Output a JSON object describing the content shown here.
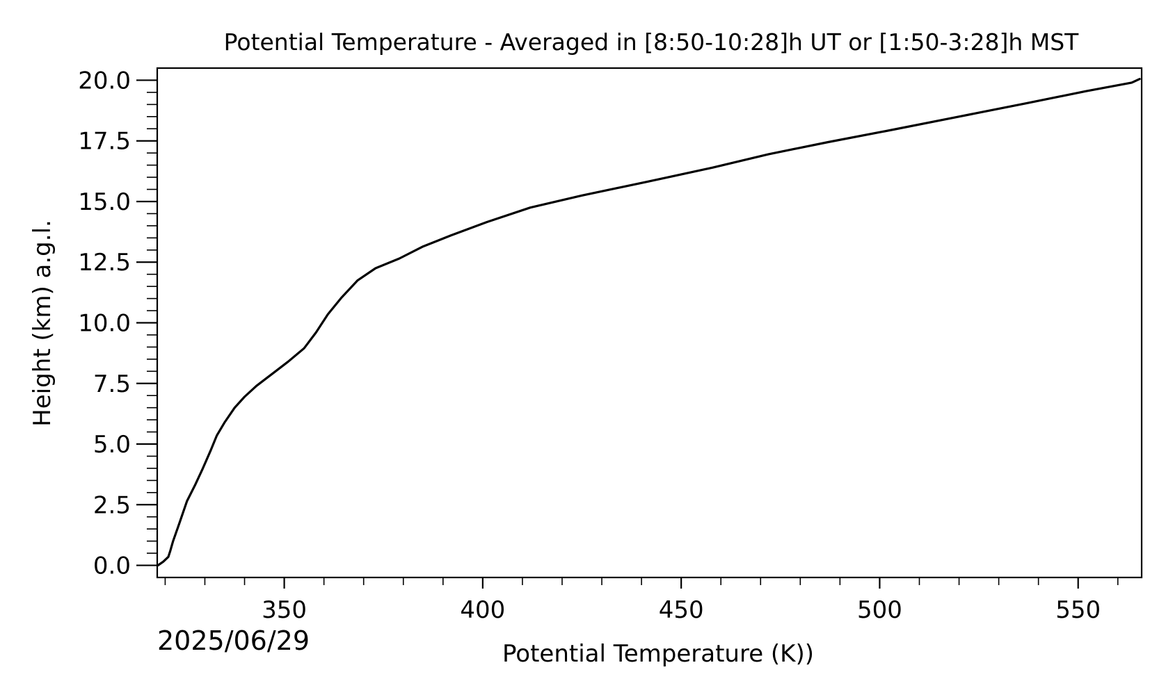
{
  "chart_data": {
    "type": "line",
    "title": "Potential Temperature - Averaged in [8:50-10:28]h UT or [1:50-3:28]h MST",
    "xlabel": "Potential Temperature (K))",
    "ylabel": "Height (km) a.g.l.",
    "date_label": "2025/06/29",
    "xlim": [
      318,
      566
    ],
    "ylim": [
      -0.5,
      20.5
    ],
    "x_ticks": [
      350,
      400,
      450,
      500,
      550
    ],
    "x_tick_labels": [
      "350",
      "400",
      "450",
      "500",
      "550"
    ],
    "y_ticks": [
      0.0,
      2.5,
      5.0,
      7.5,
      10.0,
      12.5,
      15.0,
      17.5,
      20.0
    ],
    "y_tick_labels": [
      "0.0",
      "2.5",
      "5.0",
      "7.5",
      "10.0",
      "12.5",
      "15.0",
      "17.5",
      "20.0"
    ],
    "grid": false,
    "line_color": "#000000",
    "series": [
      {
        "x": [
          318.2,
          319.5,
          320.8,
          321.3,
          322.0,
          323.5,
          325.5,
          327.5,
          329.5,
          331.5,
          333.0,
          335.0,
          337.5,
          340.0,
          343.0,
          347.0,
          351.0,
          355.0,
          358.0,
          361.0,
          364.5,
          368.5,
          373.0,
          379.0,
          385.0,
          392.0,
          401.0,
          412.0,
          425.0,
          441.0,
          458.0,
          472.0,
          487.0,
          503.0,
          520.0,
          537.0,
          552.0,
          563.5,
          565.5
        ],
        "y": [
          0.0,
          0.15,
          0.35,
          0.6,
          1.0,
          1.7,
          2.65,
          3.3,
          4.0,
          4.75,
          5.35,
          5.9,
          6.5,
          6.95,
          7.4,
          7.9,
          8.4,
          8.95,
          9.6,
          10.35,
          11.05,
          11.75,
          12.25,
          12.65,
          13.15,
          13.6,
          14.15,
          14.75,
          15.25,
          15.8,
          16.4,
          16.95,
          17.45,
          17.95,
          18.5,
          19.05,
          19.55,
          19.9,
          20.05
        ]
      }
    ]
  }
}
